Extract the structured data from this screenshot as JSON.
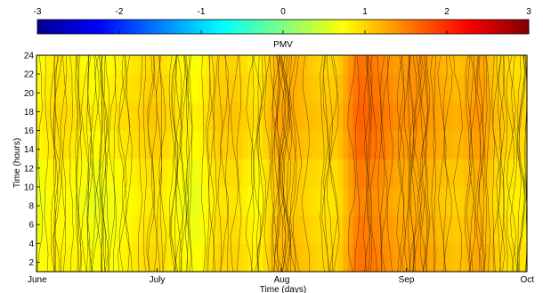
{
  "chart_data": {
    "type": "heatmap",
    "title": "",
    "xlabel": "Time (days)",
    "ylabel": "Time (hours)",
    "colorbar": {
      "label": "PMV",
      "range": [
        -3,
        3
      ],
      "ticks": [
        "-3",
        "-2",
        "-1",
        "0",
        "1",
        "2",
        "3"
      ],
      "colormap": "jet"
    },
    "x_ticks": [
      "June",
      "July",
      "Aug",
      "Sep",
      "Oct"
    ],
    "x_range_days": [
      0,
      122
    ],
    "y_ticks": [
      "2",
      "4",
      "6",
      "8",
      "10",
      "12",
      "14",
      "16",
      "18",
      "20",
      "22",
      "24"
    ],
    "y_range": [
      1,
      24
    ],
    "days": [
      0,
      5,
      10,
      15,
      20,
      25,
      30,
      35,
      40,
      45,
      50,
      55,
      60,
      65,
      70,
      75,
      80,
      85,
      90,
      95,
      100,
      105,
      110,
      115,
      120,
      122
    ],
    "hours": [
      1,
      4,
      7,
      10,
      13,
      16,
      19,
      22,
      24
    ],
    "values": [
      [
        0.7,
        0.9,
        0.8,
        0.7,
        0.8,
        0.9,
        1.0,
        0.8,
        0.7,
        1.0,
        1.0,
        0.8,
        1.2,
        1.2,
        1.0,
        1.0,
        1.6,
        1.5,
        1.3,
        1.4,
        1.2,
        1.1,
        1.3,
        1.0,
        0.9,
        0.9
      ],
      [
        0.7,
        0.8,
        0.8,
        0.7,
        0.7,
        0.9,
        1.0,
        0.8,
        0.7,
        1.0,
        1.0,
        0.8,
        1.2,
        1.1,
        1.0,
        1.0,
        1.6,
        1.5,
        1.3,
        1.3,
        1.2,
        1.1,
        1.3,
        1.0,
        0.9,
        0.9
      ],
      [
        0.6,
        0.8,
        0.7,
        0.6,
        0.7,
        0.8,
        0.9,
        0.7,
        0.6,
        0.9,
        0.9,
        0.7,
        1.1,
        1.1,
        0.9,
        0.9,
        1.5,
        1.4,
        1.2,
        1.3,
        1.1,
        1.0,
        1.2,
        0.9,
        0.8,
        0.8
      ],
      [
        0.6,
        0.8,
        0.7,
        0.6,
        0.7,
        0.8,
        0.9,
        0.7,
        0.6,
        0.9,
        0.9,
        0.7,
        1.1,
        1.0,
        0.9,
        0.9,
        1.5,
        1.4,
        1.2,
        1.2,
        1.1,
        1.0,
        1.2,
        0.9,
        0.8,
        0.8
      ],
      [
        0.7,
        0.9,
        0.8,
        0.7,
        0.8,
        0.9,
        1.0,
        0.8,
        0.7,
        1.0,
        1.0,
        0.8,
        1.2,
        1.1,
        1.0,
        1.0,
        1.6,
        1.5,
        1.3,
        1.3,
        1.2,
        1.1,
        1.3,
        1.0,
        0.9,
        0.9
      ],
      [
        0.8,
        1.0,
        0.9,
        0.8,
        0.9,
        1.0,
        1.1,
        0.9,
        0.8,
        1.1,
        1.1,
        0.9,
        1.3,
        1.2,
        1.1,
        1.1,
        1.7,
        1.6,
        1.4,
        1.4,
        1.3,
        1.2,
        1.4,
        1.1,
        1.0,
        1.0
      ],
      [
        0.8,
        1.0,
        0.9,
        0.8,
        0.9,
        1.0,
        1.1,
        0.9,
        0.8,
        1.1,
        1.1,
        0.9,
        1.3,
        1.2,
        1.1,
        1.1,
        1.7,
        1.6,
        1.4,
        1.4,
        1.3,
        1.2,
        1.4,
        1.1,
        1.0,
        1.0
      ],
      [
        0.7,
        0.9,
        0.8,
        0.7,
        0.8,
        0.9,
        1.0,
        0.8,
        0.7,
        1.0,
        1.0,
        0.8,
        1.2,
        1.2,
        1.0,
        1.0,
        1.6,
        1.5,
        1.3,
        1.4,
        1.2,
        1.1,
        1.3,
        1.0,
        0.9,
        0.9
      ],
      [
        0.7,
        0.9,
        0.8,
        0.7,
        0.8,
        0.9,
        1.0,
        0.8,
        0.7,
        1.0,
        1.0,
        0.8,
        1.2,
        1.2,
        1.0,
        1.0,
        1.6,
        1.5,
        1.3,
        1.4,
        1.2,
        1.1,
        1.3,
        1.0,
        0.9,
        0.9
      ]
    ]
  }
}
